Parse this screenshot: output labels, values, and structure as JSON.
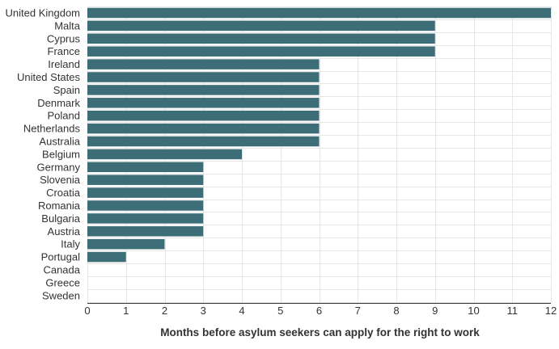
{
  "chart_data": {
    "type": "bar",
    "orientation": "horizontal",
    "categories": [
      "United Kingdom",
      "Malta",
      "Cyprus",
      "France",
      "Ireland",
      "United States",
      "Spain",
      "Denmark",
      "Poland",
      "Netherlands",
      "Australia",
      "Belgium",
      "Germany",
      "Slovenia",
      "Croatia",
      "Romania",
      "Bulgaria",
      "Austria",
      "Italy",
      "Portugal",
      "Canada",
      "Greece",
      "Sweden"
    ],
    "values": [
      12,
      9,
      9,
      9,
      6,
      6,
      6,
      6,
      6,
      6,
      6,
      4,
      3,
      3,
      3,
      3,
      3,
      3,
      2,
      1,
      0,
      0,
      0
    ],
    "title": "",
    "xlabel": "Months before asylum seekers can apply for the right to work",
    "ylabel": "",
    "xlim": [
      0,
      12
    ],
    "xticks": [
      0,
      1,
      2,
      3,
      4,
      5,
      6,
      7,
      8,
      9,
      10,
      11,
      12
    ],
    "grid": true,
    "legend": "none",
    "bar_color": "#3d6e78"
  }
}
